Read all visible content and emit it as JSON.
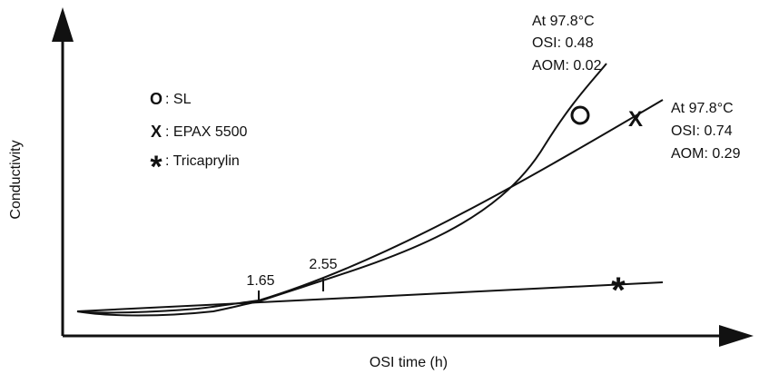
{
  "chart_data": {
    "type": "line",
    "xlabel": "OSI time (h)",
    "ylabel": "Conductivity",
    "grid": false,
    "legend": {
      "placement": "top-left",
      "entries": [
        {
          "symbol": "O",
          "label": ": SL"
        },
        {
          "symbol": "X",
          "label": ": EPAX 5500"
        },
        {
          "symbol": "*",
          "label": ": Tricaprylin"
        }
      ]
    },
    "series": [
      {
        "name": "SL",
        "symbol": "O"
      },
      {
        "name": "EPAX 5500",
        "symbol": "X"
      },
      {
        "name": "Tricaprylin",
        "symbol": "*"
      }
    ],
    "annotations": {
      "sl": [
        "At 97.8°C",
        "OSI: 0.48",
        "AOM: 0.02"
      ],
      "epax": [
        "At 97.8°C",
        "OSI: 0.74",
        "AOM: 0.29"
      ],
      "tick_1": "1.65",
      "tick_2": "2.55"
    },
    "colors": {
      "ink": "#111111"
    }
  }
}
